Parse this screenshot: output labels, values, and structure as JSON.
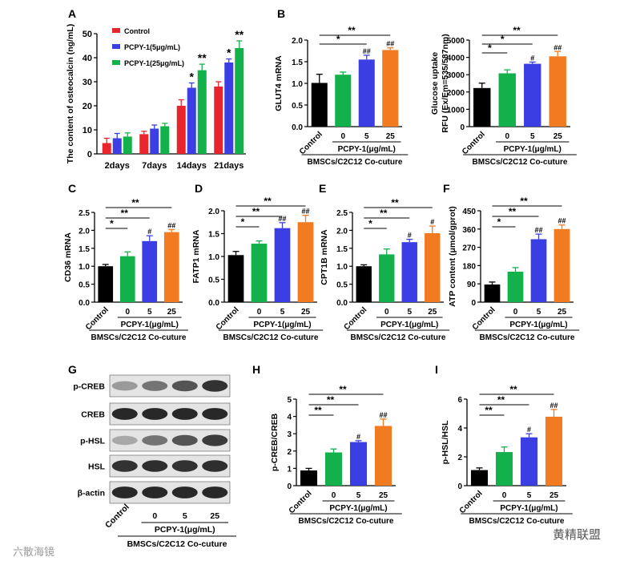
{
  "figure": {
    "panel_letters": [
      "A",
      "B",
      "C",
      "D",
      "E",
      "F",
      "G",
      "H",
      "I"
    ],
    "xgroup_treat_label": "PCPY-1(μg/mL)",
    "xgroup_coculture_label": "BMSCs/C2C12 Co-cuture",
    "blot_xgroup_treat_label": "PCPY-1(μg/mL)",
    "blot_xgroup_coculture_label": "BMSCs/C2C12 Co-cuture",
    "watermark_left": "六散海镜",
    "watermark_right": "黄精联盟"
  },
  "colors": {
    "control": "#000000",
    "dose0": "#13b14b",
    "dose5": "#3b3fe3",
    "dose25": "#f27a21",
    "a_control": "#e8242c",
    "a_low": "#3b3fe3",
    "a_high": "#13b14b"
  },
  "chart_data": [
    {
      "id": "A",
      "type": "bar",
      "title": "",
      "ylabel": "The content of osteocalcin (ng/mL)",
      "categories": [
        "2days",
        "7days",
        "14days",
        "21days"
      ],
      "ylim": [
        0,
        50
      ],
      "yticks": [
        0,
        10,
        20,
        30,
        40,
        50
      ],
      "series": [
        {
          "name": "Control",
          "values": [
            4.5,
            8.2,
            20,
            28
          ],
          "errors": [
            2,
            1.2,
            2.5,
            2
          ]
        },
        {
          "name": "PCPY-1(5μg/mL)",
          "values": [
            6.5,
            10.5,
            27.5,
            38
          ],
          "errors": [
            2,
            1.5,
            2,
            1.5
          ]
        },
        {
          "name": "PCPY-1(25μg/mL)",
          "values": [
            7.2,
            11.5,
            34.8,
            44
          ],
          "errors": [
            1.5,
            1.2,
            2.5,
            3
          ]
        }
      ],
      "annotations": [
        {
          "category": "14days",
          "series": 1,
          "text": "*"
        },
        {
          "category": "14days",
          "series": 2,
          "text": "**"
        },
        {
          "category": "21days",
          "series": 1,
          "text": "*"
        },
        {
          "category": "21days",
          "series": 2,
          "text": "**"
        }
      ],
      "legend": "top-left"
    },
    {
      "id": "B1",
      "type": "bar",
      "ylabel": "GLUT4 mRNA",
      "categories": [
        "Control",
        "0",
        "5",
        "25"
      ],
      "values": [
        1.01,
        1.2,
        1.55,
        1.77
      ],
      "errors": [
        0.2,
        0.06,
        0.1,
        0.05
      ],
      "ylim": [
        0,
        2.0
      ],
      "yticks": [
        0.0,
        0.5,
        1.0,
        1.5,
        2.0
      ],
      "bar_marks": [
        "",
        "",
        "##",
        "##"
      ],
      "brackets": [
        "*",
        "**"
      ]
    },
    {
      "id": "B2",
      "type": "bar",
      "ylabel": "Glucose uptake RFU (Ex/Em=535/587nm)",
      "categories": [
        "Control",
        "0",
        "5",
        "25"
      ],
      "values": [
        2230,
        3080,
        3630,
        4060
      ],
      "errors": [
        280,
        200,
        100,
        280
      ],
      "ylim": [
        0,
        5000
      ],
      "yticks": [
        0,
        1000,
        2000,
        3000,
        4000,
        5000
      ],
      "bar_marks": [
        "",
        "",
        "#",
        "##"
      ],
      "brackets": [
        "*",
        "*",
        "**"
      ]
    },
    {
      "id": "C",
      "type": "bar",
      "ylabel": "CD36 mRNA",
      "categories": [
        "Control",
        "0",
        "5",
        "25"
      ],
      "values": [
        1.0,
        1.28,
        1.7,
        1.95
      ],
      "errors": [
        0.05,
        0.12,
        0.15,
        0.07
      ],
      "ylim": [
        0,
        2.5
      ],
      "yticks": [
        0.0,
        0.5,
        1.0,
        1.5,
        2.0,
        2.5
      ],
      "bar_marks": [
        "",
        "",
        "#",
        "##"
      ],
      "brackets": [
        "*",
        "**",
        "**"
      ]
    },
    {
      "id": "D",
      "type": "bar",
      "ylabel": "FATP1 mRNA",
      "categories": [
        "Control",
        "0",
        "5",
        "25"
      ],
      "values": [
        1.03,
        1.28,
        1.62,
        1.75
      ],
      "errors": [
        0.08,
        0.06,
        0.12,
        0.15
      ],
      "ylim": [
        0,
        2.0
      ],
      "yticks": [
        0.0,
        0.5,
        1.0,
        1.5,
        2.0
      ],
      "bar_marks": [
        "",
        "",
        "##",
        "##"
      ],
      "brackets": [
        "*",
        "**",
        "**"
      ]
    },
    {
      "id": "E",
      "type": "bar",
      "ylabel": "CPT1B mRNA",
      "categories": [
        "Control",
        "0",
        "5",
        "25"
      ],
      "values": [
        1.0,
        1.33,
        1.67,
        1.92
      ],
      "errors": [
        0.04,
        0.15,
        0.08,
        0.2
      ],
      "ylim": [
        0,
        2.5
      ],
      "yticks": [
        0.0,
        0.5,
        1.0,
        1.5,
        2.0,
        2.5
      ],
      "bar_marks": [
        "",
        "",
        "#",
        "#"
      ],
      "brackets": [
        "*",
        "**",
        "**"
      ]
    },
    {
      "id": "F",
      "type": "bar",
      "ylabel": "ATP content (μmol/gprot)",
      "categories": [
        "Control",
        "0",
        "5",
        "25"
      ],
      "values": [
        87,
        150,
        310,
        360
      ],
      "errors": [
        12,
        20,
        25,
        20
      ],
      "ylim": [
        0,
        450
      ],
      "yticks": [
        0,
        90,
        180,
        270,
        360,
        450
      ],
      "bar_marks": [
        "",
        "",
        "##",
        "##"
      ],
      "brackets": [
        "*",
        "**",
        "**"
      ]
    },
    {
      "id": "H",
      "type": "bar",
      "ylabel": "p-CREB/CREB",
      "categories": [
        "Control",
        "0",
        "5",
        "25"
      ],
      "values": [
        0.88,
        1.92,
        2.52,
        3.45
      ],
      "errors": [
        0.12,
        0.2,
        0.08,
        0.4
      ],
      "ylim": [
        0,
        5
      ],
      "yticks": [
        0,
        1,
        2,
        3,
        4,
        5
      ],
      "bar_marks": [
        "",
        "",
        "#",
        "##"
      ],
      "brackets": [
        "**",
        "**",
        "**"
      ]
    },
    {
      "id": "I",
      "type": "bar",
      "ylabel": "p-HSL/HSL",
      "categories": [
        "Control",
        "0",
        "5",
        "25"
      ],
      "values": [
        1.08,
        2.33,
        3.35,
        4.78
      ],
      "errors": [
        0.15,
        0.35,
        0.25,
        0.5
      ],
      "ylim": [
        0,
        6
      ],
      "yticks": [
        0,
        2,
        4,
        6
      ],
      "bar_marks": [
        "",
        "",
        "#",
        "##"
      ],
      "brackets": [
        "**",
        "**",
        "**"
      ]
    }
  ],
  "blot": {
    "rows": [
      "p-CREB",
      "CREB",
      "p-HSL",
      "HSL",
      "β-actin"
    ],
    "lanes": [
      "Control",
      "0",
      "5",
      "25"
    ],
    "intensity": [
      [
        0.35,
        0.55,
        0.72,
        0.9
      ],
      [
        0.95,
        0.95,
        0.95,
        0.95
      ],
      [
        0.28,
        0.55,
        0.72,
        0.85
      ],
      [
        0.9,
        0.92,
        0.9,
        0.92
      ],
      [
        0.95,
        0.95,
        0.95,
        0.95
      ]
    ]
  }
}
